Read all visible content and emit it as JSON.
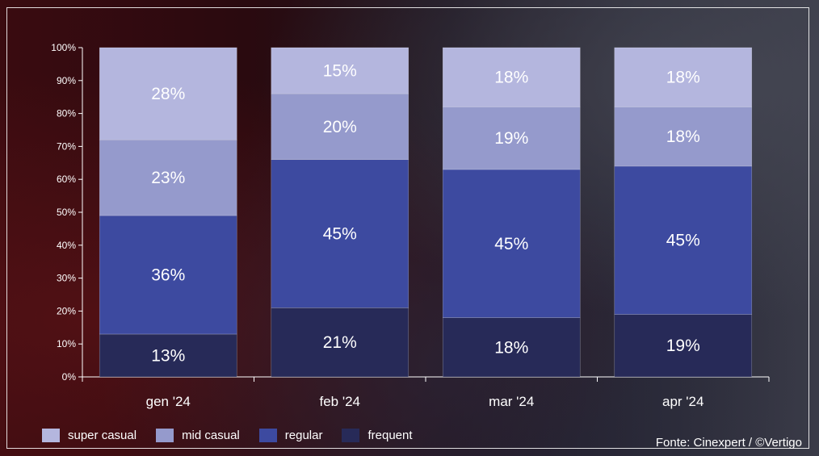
{
  "chart_data": {
    "type": "bar",
    "stacked": true,
    "categories": [
      "gen '24",
      "feb '24",
      "mar '24",
      "apr '24"
    ],
    "series": [
      {
        "name": "frequent",
        "values": [
          13,
          21,
          18,
          19
        ],
        "color": "#272a58"
      },
      {
        "name": "regular",
        "values": [
          36,
          45,
          45,
          45
        ],
        "color": "#3d4aa0"
      },
      {
        "name": "mid casual",
        "values": [
          23,
          20,
          19,
          18
        ],
        "color": "#959acc"
      },
      {
        "name": "super casual",
        "values": [
          28,
          15,
          18,
          18
        ],
        "color": "#b4b6de"
      }
    ],
    "value_labels": [
      [
        "13%",
        "21%",
        "18%",
        "19%"
      ],
      [
        "36%",
        "45%",
        "45%",
        "45%"
      ],
      [
        "23%",
        "20%",
        "19%",
        "18%"
      ],
      [
        "28%",
        "15%",
        "18%",
        "18%"
      ]
    ],
    "y_ticks": [
      "0%",
      "10%",
      "20%",
      "30%",
      "40%",
      "50%",
      "60%",
      "70%",
      "80%",
      "90%",
      "100%"
    ],
    "ylim": [
      0,
      100
    ],
    "grid": false,
    "legend_position": "bottom-left",
    "legend_order": [
      "super casual",
      "mid casual",
      "regular",
      "frequent"
    ]
  },
  "source_text": "Fonte: Cinexpert / ©Vertigo"
}
